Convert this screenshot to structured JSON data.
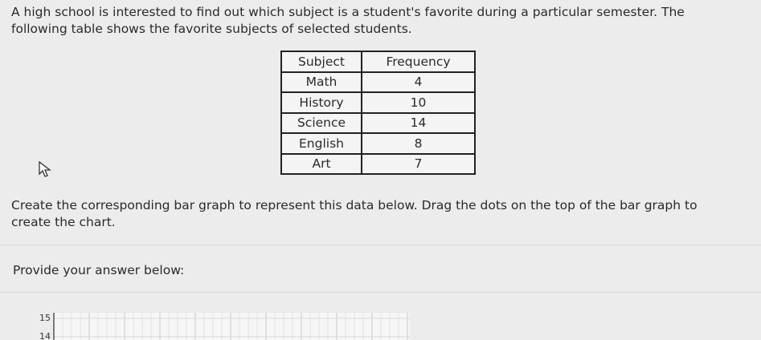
{
  "question": "A high school is interested to find out which subject is a student's favorite during a particular semester. The following table shows the favorite subjects of selected students.",
  "table": {
    "header": [
      "Subject",
      "Frequency"
    ],
    "rows": [
      [
        "Math",
        "4"
      ],
      [
        "History",
        "10"
      ],
      [
        "Science",
        "14"
      ],
      [
        "English",
        "8"
      ],
      [
        "Art",
        "7"
      ]
    ]
  },
  "instruction": "Create the corresponding bar graph to represent this data below. Drag the dots on the top of the bar graph to create the chart.",
  "answer_prompt": "Provide your answer below:",
  "answer_chart": {
    "yticks": [
      15,
      14
    ]
  }
}
